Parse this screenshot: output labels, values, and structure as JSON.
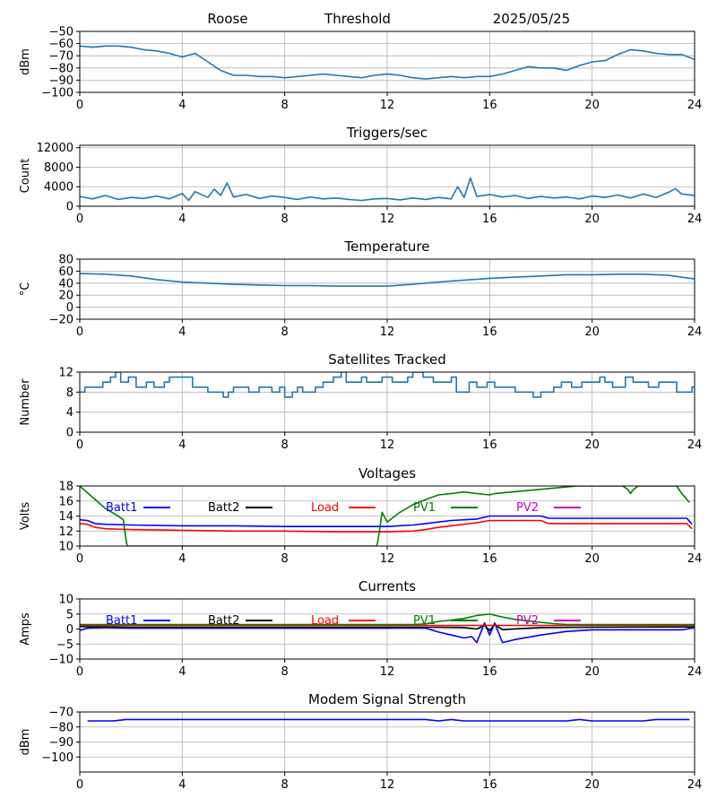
{
  "header": {
    "station": "Roose",
    "label": "Threshold",
    "date": "2025/05/25"
  },
  "x_axis": {
    "range": [
      0,
      24
    ],
    "ticks": [
      0,
      4,
      8,
      12,
      16,
      20,
      24
    ]
  },
  "legend_labels": {
    "batt1": "Batt1",
    "batt2": "Batt2",
    "load": "Load",
    "pv1": "PV1",
    "pv2": "PV2"
  },
  "legend_colors": {
    "batt1": "#0000ff",
    "batt2": "#000000",
    "load": "#ff0000",
    "pv1": "#008000",
    "pv2": "#bf00bf"
  },
  "chart_data": [
    {
      "id": "threshold",
      "type": "line",
      "title": "",
      "ylabel": "dBm",
      "ylim": [
        -100,
        -50
      ],
      "yticks": [
        -100,
        -90,
        -80,
        -70,
        -60,
        -50
      ],
      "grid": true,
      "series": [
        {
          "color": "#1f77b4",
          "x": [
            0,
            0.5,
            1,
            1.5,
            2,
            2.5,
            3,
            3.5,
            4,
            4.5,
            5,
            5.5,
            6,
            6.5,
            7,
            7.5,
            8,
            8.5,
            9,
            9.5,
            10,
            10.5,
            11,
            11.5,
            12,
            12.5,
            13,
            13.5,
            14,
            14.5,
            15,
            15.5,
            16,
            16.5,
            17,
            17.5,
            18,
            18.5,
            19,
            19.5,
            20,
            20.5,
            21,
            21.5,
            22,
            22.5,
            23,
            23.5,
            24
          ],
          "y": [
            -62,
            -63,
            -62,
            -62,
            -63,
            -65,
            -66,
            -68,
            -71,
            -68,
            -75,
            -82,
            -86,
            -86,
            -87,
            -87,
            -88,
            -87,
            -86,
            -85,
            -86,
            -87,
            -88,
            -86,
            -85,
            -86,
            -88,
            -89,
            -88,
            -87,
            -88,
            -87,
            -87,
            -85,
            -82,
            -79,
            -80,
            -80,
            -82,
            -78,
            -75,
            -74,
            -69,
            -65,
            -66,
            -68,
            -69,
            -69,
            -73
          ]
        }
      ]
    },
    {
      "id": "triggers",
      "type": "line",
      "title": "Triggers/sec",
      "ylabel": "Count",
      "ylim": [
        0,
        12500
      ],
      "yticks": [
        0,
        4000,
        8000,
        12000
      ],
      "grid": true,
      "series": [
        {
          "color": "#1f77b4",
          "x": [
            0,
            0.5,
            1,
            1.5,
            2,
            2.5,
            3,
            3.5,
            4,
            4.25,
            4.5,
            5,
            5.25,
            5.5,
            5.75,
            6,
            6.5,
            7,
            7.5,
            8,
            8.5,
            9,
            9.5,
            10,
            10.5,
            11,
            11.5,
            12,
            12.5,
            13,
            13.5,
            14,
            14.5,
            14.75,
            15,
            15.25,
            15.5,
            16,
            16.5,
            17,
            17.5,
            18,
            18.5,
            19,
            19.5,
            20,
            20.5,
            21,
            21.5,
            22,
            22.5,
            23,
            23.25,
            23.5,
            24
          ],
          "y": [
            2000,
            1500,
            2200,
            1400,
            1800,
            1600,
            2100,
            1500,
            2600,
            1200,
            3000,
            1800,
            3500,
            2200,
            4800,
            1900,
            2400,
            1600,
            2100,
            1800,
            1400,
            1900,
            1500,
            1700,
            1400,
            1200,
            1500,
            1600,
            1300,
            1700,
            1400,
            1800,
            1500,
            4000,
            1800,
            5800,
            2000,
            2400,
            1900,
            2200,
            1600,
            2000,
            1700,
            1900,
            1500,
            2100,
            1800,
            2300,
            1700,
            2500,
            1800,
            2900,
            3600,
            2500,
            2200
          ]
        }
      ]
    },
    {
      "id": "temperature",
      "type": "line",
      "title": "Temperature",
      "ylabel": "°C",
      "ylim": [
        -20,
        80
      ],
      "yticks": [
        -20,
        0,
        20,
        40,
        60,
        80
      ],
      "grid": true,
      "series": [
        {
          "color": "#1f77b4",
          "x": [
            0,
            1,
            2,
            3,
            4,
            5,
            6,
            7,
            8,
            9,
            10,
            11,
            12,
            13,
            14,
            15,
            16,
            17,
            18,
            19,
            20,
            21,
            22,
            23,
            24
          ],
          "y": [
            56,
            55,
            52,
            46,
            42,
            40,
            38,
            37,
            36,
            36,
            35,
            35,
            35,
            38,
            42,
            45,
            48,
            50,
            52,
            54,
            54,
            55,
            55,
            53,
            47
          ]
        }
      ]
    },
    {
      "id": "satellites",
      "type": "line",
      "title": "Satellites Tracked",
      "ylabel": "Number",
      "ylim": [
        0,
        12
      ],
      "yticks": [
        0,
        4,
        8,
        12
      ],
      "grid": true,
      "series": [
        {
          "color": "#1f77b4",
          "step": true,
          "x": [
            0,
            0.2,
            0.8,
            0.9,
            1.2,
            1.4,
            1.6,
            1.9,
            2.2,
            2.6,
            2.9,
            3.3,
            3.5,
            4.4,
            5.0,
            5.6,
            5.8,
            6.0,
            6.6,
            7.0,
            7.5,
            7.8,
            8.0,
            8.3,
            8.5,
            8.7,
            9.2,
            9.5,
            9.9,
            10.2,
            10.4,
            11.0,
            11.2,
            11.8,
            12.2,
            12.8,
            13.0,
            13.4,
            13.8,
            14.5,
            14.7,
            15.2,
            15.5,
            15.9,
            16.2,
            17.0,
            17.7,
            18.0,
            18.5,
            18.8,
            19.2,
            19.6,
            20.3,
            20.5,
            20.8,
            21.3,
            21.6,
            22.2,
            22.6,
            23.3,
            23.9
          ],
          "y": [
            8,
            9,
            9,
            10,
            11,
            12,
            10,
            11,
            9,
            10,
            9,
            10,
            11,
            9,
            8,
            7,
            8,
            9,
            8,
            9,
            8,
            9,
            7,
            8,
            9,
            8,
            9,
            10,
            11,
            12,
            10,
            11,
            10,
            11,
            10,
            11,
            12,
            11,
            10,
            11,
            8,
            10,
            9,
            10,
            9,
            8,
            7,
            8,
            9,
            10,
            9,
            10,
            11,
            10,
            9,
            11,
            10,
            9,
            10,
            8,
            9
          ]
        }
      ]
    },
    {
      "id": "voltages",
      "type": "line",
      "title": "Voltages",
      "ylabel": "Volts",
      "ylim": [
        10,
        18
      ],
      "yticks": [
        10,
        12,
        14,
        16,
        18
      ],
      "grid": true,
      "legend": "top",
      "series": [
        {
          "name": "Batt1",
          "color": "#0000ff",
          "x": [
            0,
            0.3,
            0.6,
            1,
            2,
            4,
            6,
            8,
            10,
            12,
            13,
            13.5,
            14,
            14.5,
            15,
            15.5,
            16,
            17,
            18,
            18.3,
            19,
            20,
            22,
            23.7,
            23.9
          ],
          "y": [
            13.5,
            13.4,
            13.0,
            12.9,
            12.8,
            12.7,
            12.7,
            12.6,
            12.6,
            12.6,
            12.8,
            13.0,
            13.2,
            13.4,
            13.5,
            13.6,
            14.0,
            14.0,
            14.0,
            13.7,
            13.7,
            13.7,
            13.7,
            13.7,
            12.9
          ]
        },
        {
          "name": "Batt2",
          "color": "#000000",
          "x": [],
          "y": []
        },
        {
          "name": "Load",
          "color": "#ff0000",
          "x": [
            0,
            0.3,
            0.6,
            1,
            2,
            4,
            6,
            8,
            10,
            12,
            13,
            13.5,
            14,
            14.5,
            15,
            15.5,
            16,
            17,
            18,
            18.3,
            19,
            20,
            22,
            23.7,
            23.9
          ],
          "y": [
            13.0,
            12.9,
            12.5,
            12.3,
            12.2,
            12.1,
            12.0,
            12.0,
            11.9,
            11.9,
            12.0,
            12.2,
            12.5,
            12.7,
            12.9,
            13.1,
            13.4,
            13.4,
            13.4,
            13.0,
            13.0,
            13.0,
            13.0,
            13.0,
            12.3
          ]
        },
        {
          "name": "PV1",
          "color": "#008000",
          "x": [
            0,
            0.5,
            1,
            1.5,
            1.7,
            1.8,
            1.85,
            11.6,
            11.7,
            11.8,
            12,
            12.5,
            13,
            13.5,
            14,
            14.5,
            15,
            15.5,
            16,
            16.2,
            19.4,
            19.5,
            21.2,
            21.4,
            21.5,
            21.6,
            21.8,
            23.3,
            23.5,
            23.8
          ],
          "y": [
            18,
            16.5,
            15,
            14,
            13.5,
            11,
            10,
            10,
            12,
            14.5,
            13.2,
            14.5,
            15.5,
            16.2,
            16.8,
            17.0,
            17.2,
            17.0,
            16.8,
            17.0,
            18,
            18,
            18,
            17.5,
            17.0,
            17.5,
            18,
            18,
            17.0,
            15.8
          ]
        },
        {
          "name": "PV2",
          "color": "#bf00bf",
          "x": [],
          "y": []
        }
      ]
    },
    {
      "id": "currents",
      "type": "line",
      "title": "Currents",
      "ylabel": "Amps",
      "ylim": [
        -10,
        10
      ],
      "yticks": [
        -10,
        -5,
        0,
        5,
        10
      ],
      "grid": true,
      "legend": "top",
      "series": [
        {
          "name": "Batt1",
          "color": "#0000ff",
          "x": [
            0,
            0.3,
            1,
            2,
            4,
            8,
            12,
            13,
            13.5,
            14,
            14.5,
            15,
            15.3,
            15.5,
            15.8,
            16,
            16.2,
            16.5,
            17,
            18,
            19,
            20,
            22,
            23.5,
            24
          ],
          "y": [
            -0.5,
            0.3,
            0.5,
            0.3,
            0.3,
            0.3,
            0.3,
            0.4,
            0.3,
            -1.0,
            -2.0,
            -3.0,
            -2.5,
            -4.5,
            2.0,
            -2.0,
            2.0,
            -4.5,
            -3.5,
            -2.0,
            -0.8,
            -0.3,
            -0.3,
            -0.3,
            0.5
          ]
        },
        {
          "name": "Batt2",
          "color": "#000000",
          "x": [
            0,
            2,
            4,
            8,
            12,
            13,
            14,
            15,
            15.5,
            15.8,
            16,
            16.2,
            16.5,
            18,
            20,
            24
          ],
          "y": [
            0.8,
            0.6,
            0.6,
            0.6,
            0.6,
            0.6,
            0.6,
            0.5,
            0.0,
            1.2,
            -0.5,
            1.5,
            -0.2,
            0.5,
            0.6,
            0.7
          ]
        },
        {
          "name": "Load",
          "color": "#ff0000",
          "x": [
            0,
            2,
            4,
            8,
            12,
            16,
            20,
            24
          ],
          "y": [
            1.2,
            1.2,
            1.2,
            1.2,
            1.2,
            1.2,
            1.2,
            1.2
          ]
        },
        {
          "name": "PV1",
          "color": "#008000",
          "x": [
            0,
            4,
            8,
            12,
            13,
            13.5,
            14,
            14.5,
            15,
            15.5,
            16,
            16.5,
            17,
            18,
            18.5,
            19,
            20,
            24
          ],
          "y": [
            1.5,
            1.5,
            1.5,
            1.5,
            1.5,
            1.7,
            2.5,
            3.0,
            3.5,
            4.5,
            5.0,
            4.0,
            3.2,
            2.2,
            1.8,
            1.5,
            1.5,
            1.5
          ]
        },
        {
          "name": "PV2",
          "color": "#bf00bf",
          "x": [],
          "y": []
        }
      ]
    },
    {
      "id": "modem",
      "type": "line",
      "title": "Modem Signal Strength",
      "ylabel": "dBm",
      "ylim": [
        -110,
        -70
      ],
      "yticks": [
        -100,
        -90,
        -80,
        -70
      ],
      "grid": true,
      "series": [
        {
          "color": "#0000ff",
          "x": [
            0.3,
            1.3,
            1.8,
            2.5,
            4,
            8,
            12,
            13.5,
            14,
            14.5,
            15,
            15.5,
            16,
            18,
            19,
            19.5,
            20,
            22,
            22.5,
            23.8
          ],
          "y": [
            -76,
            -76,
            -75,
            -75,
            -75,
            -75,
            -75,
            -75,
            -76,
            -75,
            -76,
            -76,
            -76,
            -76,
            -76,
            -75,
            -76,
            -76,
            -75,
            -75
          ]
        }
      ]
    }
  ]
}
